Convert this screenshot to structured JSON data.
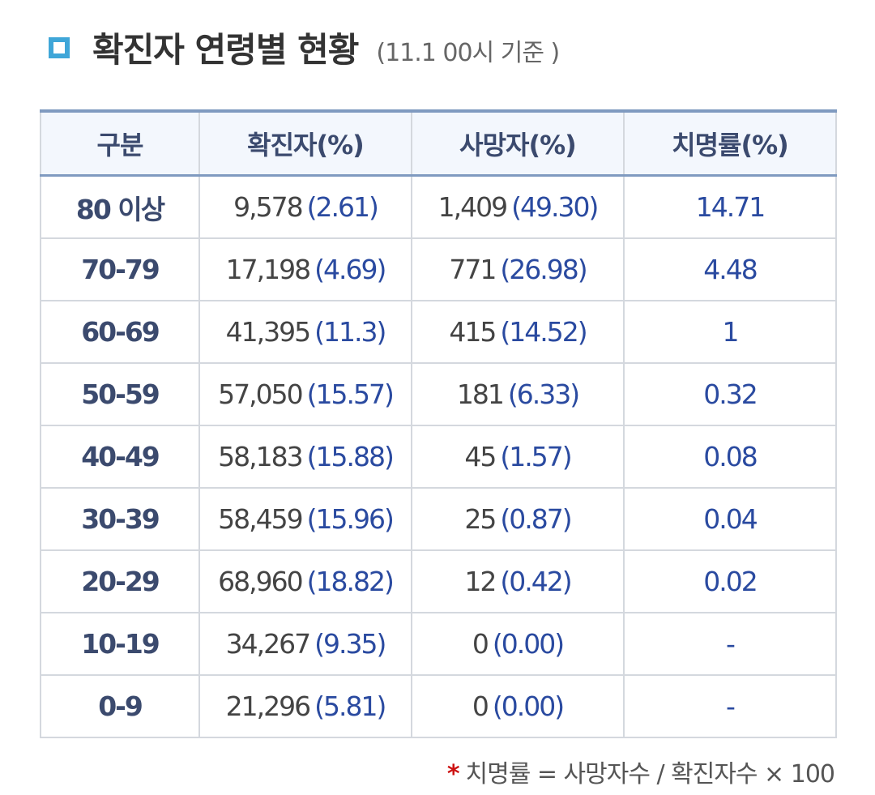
{
  "header": {
    "title": "확진자 연령별 현황",
    "note": "(11.1 00시 기준 )"
  },
  "table": {
    "columns": [
      "구분",
      "확진자(%)",
      "사망자(%)",
      "치명률(%)"
    ],
    "rows": [
      {
        "age": "80 이상",
        "cases": "9,578",
        "cases_pct": "(2.61)",
        "deaths": "1,409",
        "deaths_pct": "(49.30)",
        "rate": "14.71"
      },
      {
        "age": "70-79",
        "cases": "17,198",
        "cases_pct": "(4.69)",
        "deaths": "771",
        "deaths_pct": "(26.98)",
        "rate": "4.48"
      },
      {
        "age": "60-69",
        "cases": "41,395",
        "cases_pct": "(11.3)",
        "deaths": "415",
        "deaths_pct": "(14.52)",
        "rate": "1"
      },
      {
        "age": "50-59",
        "cases": "57,050",
        "cases_pct": "(15.57)",
        "deaths": "181",
        "deaths_pct": "(6.33)",
        "rate": "0.32"
      },
      {
        "age": "40-49",
        "cases": "58,183",
        "cases_pct": "(15.88)",
        "deaths": "45",
        "deaths_pct": "(1.57)",
        "rate": "0.08"
      },
      {
        "age": "30-39",
        "cases": "58,459",
        "cases_pct": "(15.96)",
        "deaths": "25",
        "deaths_pct": "(0.87)",
        "rate": "0.04"
      },
      {
        "age": "20-29",
        "cases": "68,960",
        "cases_pct": "(18.82)",
        "deaths": "12",
        "deaths_pct": "(0.42)",
        "rate": "0.02"
      },
      {
        "age": "10-19",
        "cases": "34,267",
        "cases_pct": "(9.35)",
        "deaths": "0",
        "deaths_pct": "(0.00)",
        "rate": "-"
      },
      {
        "age": "0-9",
        "cases": "21,296",
        "cases_pct": "(5.81)",
        "deaths": "0",
        "deaths_pct": "(0.00)",
        "rate": "-"
      }
    ]
  },
  "footnote": {
    "star": "*",
    "text": "치명률 = 사망자수 / 확진자수 × 100"
  },
  "colors": {
    "accent": "#3fa6d8",
    "header_text": "#3b4a6e",
    "pct_blue": "#2a4aa0",
    "footnote_star": "#cc1111"
  }
}
